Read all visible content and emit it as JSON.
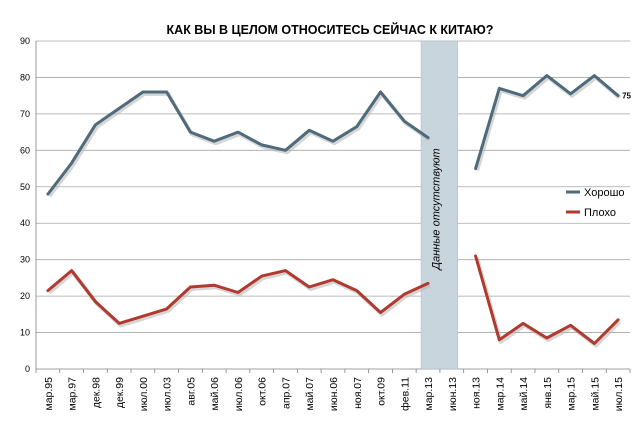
{
  "chart_data": {
    "type": "line",
    "title": "КАК ВЫ В ЦЕЛОМ ОТНОСИТЕСЬ СЕЙЧАС К КИТАЮ?",
    "xlabel": "",
    "ylabel": "",
    "ylim": [
      0,
      90
    ],
    "yticks": [
      0,
      10,
      20,
      30,
      40,
      50,
      60,
      70,
      80,
      90
    ],
    "grid": true,
    "legend_position": "right",
    "categories": [
      "мар.95",
      "мар.97",
      "дек.98",
      "дек.99",
      "июл.00",
      "июл.03",
      "авг.05",
      "май.06",
      "июл.06",
      "окт.06",
      "апр.07",
      "май.07",
      "июн.06",
      "ноя.07",
      "окт.09",
      "фев.11",
      "мар.13",
      "июн.13",
      "ноя.13",
      "мар.14",
      "май.14",
      "янв.15",
      "мар.15",
      "май.15",
      "июл.15"
    ],
    "gap_band": {
      "from_index": 16,
      "to_index": 17,
      "label": "Данные отсутствуют",
      "color": "#c9d5dd"
    },
    "series": [
      {
        "name": "Хорошо",
        "color": "#4e6a7b",
        "values": [
          48,
          56.5,
          67,
          71.5,
          76,
          76,
          65,
          62.5,
          65,
          61.5,
          60,
          65.5,
          62.5,
          66.5,
          76,
          68,
          63.5,
          null,
          55,
          77,
          75,
          80.5,
          75.5,
          80.5,
          75
        ],
        "end_label": "75"
      },
      {
        "name": "Плохо",
        "color": "#b03a2e",
        "values": [
          21.5,
          27,
          18.5,
          12.5,
          14.5,
          16.5,
          22.5,
          23,
          21,
          25.5,
          27,
          22.5,
          24.5,
          21.5,
          15.5,
          20.5,
          23.5,
          null,
          31,
          8,
          12.5,
          8.5,
          12,
          7,
          13.5
        ]
      }
    ]
  }
}
